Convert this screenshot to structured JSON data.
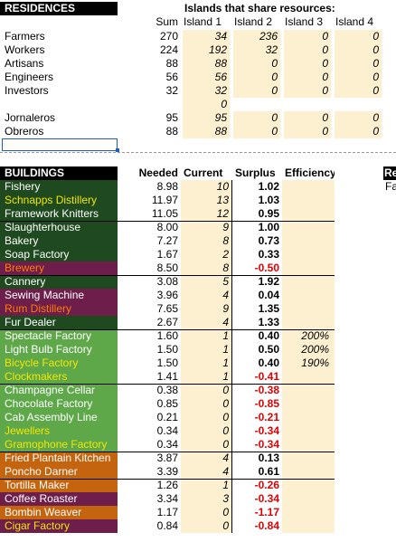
{
  "residences": {
    "title": "RESIDENCES",
    "share_title": "Islands that share resources:",
    "col_headers": [
      "Sum",
      "Island 1",
      "Island 2",
      "Island 3",
      "Island 4"
    ],
    "rows": [
      {
        "name": "Farmers",
        "sum": "270",
        "i1": "34",
        "i2": "236",
        "i3": "0",
        "i4": "0"
      },
      {
        "name": "Workers",
        "sum": "224",
        "i1": "192",
        "i2": "32",
        "i3": "0",
        "i4": "0"
      },
      {
        "name": "Artisans",
        "sum": "88",
        "i1": "88",
        "i2": "0",
        "i3": "0",
        "i4": "0"
      },
      {
        "name": "Engineers",
        "sum": "56",
        "i1": "56",
        "i2": "0",
        "i3": "0",
        "i4": "0"
      },
      {
        "name": "Investors",
        "sum": "32",
        "i1": "32",
        "i2": "0",
        "i3": "0",
        "i4": "0"
      },
      {
        "name": "",
        "sum": "",
        "i1": "0",
        "i2": "",
        "i3": "",
        "i4": ""
      },
      {
        "name": "Jornaleros",
        "sum": "95",
        "i1": "95",
        "i2": "0",
        "i3": "0",
        "i4": "0"
      },
      {
        "name": "Obreros",
        "sum": "88",
        "i1": "88",
        "i2": "0",
        "i3": "0",
        "i4": "0"
      }
    ]
  },
  "buildings": {
    "title": "BUILDINGS",
    "col_headers": [
      "Needed",
      "Current",
      "Surplus",
      "Efficiency"
    ],
    "right_header": "Re",
    "right_sub": "Fa",
    "rows": [
      {
        "name": "Fishery",
        "needed": "8.98",
        "current": "10",
        "surplus": "1.02",
        "eff": "",
        "bg": "#1f4a1f",
        "fg": "#ffffff"
      },
      {
        "name": "Schnapps Distillery",
        "needed": "11.97",
        "current": "13",
        "surplus": "1.03",
        "eff": "",
        "bg": "#1f4a1f",
        "fg": "#f2e600"
      },
      {
        "name": "Framework Knitters",
        "needed": "11.05",
        "current": "12",
        "surplus": "0.95",
        "eff": "",
        "bg": "#1f4a1f",
        "fg": "#ffffff"
      },
      {
        "name": "Slaughterhouse",
        "needed": "8.00",
        "current": "9",
        "surplus": "1.00",
        "eff": "",
        "bg": "#1f4a1f",
        "fg": "#ffffff"
      },
      {
        "name": "Bakery",
        "needed": "7.27",
        "current": "8",
        "surplus": "0.73",
        "eff": "",
        "bg": "#1f4a1f",
        "fg": "#ffffff"
      },
      {
        "name": "Soap Factory",
        "needed": "1.67",
        "current": "2",
        "surplus": "0.33",
        "eff": "",
        "bg": "#1f4a1f",
        "fg": "#ffffff"
      },
      {
        "name": "Brewery",
        "needed": "8.50",
        "current": "8",
        "surplus": "-0.50",
        "eff": "",
        "bg": "#6e1e4a",
        "fg": "#ff7a00"
      },
      {
        "name": "Cannery",
        "needed": "3.08",
        "current": "5",
        "surplus": "1.92",
        "eff": "",
        "bg": "#1f4a1f",
        "fg": "#ffffff"
      },
      {
        "name": "Sewing Machine",
        "needed": "3.96",
        "current": "4",
        "surplus": "0.04",
        "eff": "",
        "bg": "#6e1e4a",
        "fg": "#ffffff"
      },
      {
        "name": "Rum Distillery",
        "needed": "7.65",
        "current": "9",
        "surplus": "1.35",
        "eff": "",
        "bg": "#6e1e4a",
        "fg": "#ff7a00"
      },
      {
        "name": "Fur Dealer",
        "needed": "2.67",
        "current": "4",
        "surplus": "1.33",
        "eff": "",
        "bg": "#1f4a1f",
        "fg": "#ffffff"
      },
      {
        "name": "Spectacle Factory",
        "needed": "1.60",
        "current": "1",
        "surplus": "0.40",
        "eff": "200%",
        "bg": "#5fa84a",
        "fg": "#ffffff"
      },
      {
        "name": "Light Bulb Factory",
        "needed": "1.50",
        "current": "1",
        "surplus": "0.50",
        "eff": "200%",
        "bg": "#5fa84a",
        "fg": "#ffffff"
      },
      {
        "name": "Bicycle Factory",
        "needed": "1.50",
        "current": "1",
        "surplus": "0.40",
        "eff": "190%",
        "bg": "#5fa84a",
        "fg": "#f2e600"
      },
      {
        "name": "Clockmakers",
        "needed": "1.41",
        "current": "1",
        "surplus": "-0.41",
        "eff": "",
        "bg": "#5fa84a",
        "fg": "#f2e600"
      },
      {
        "name": "Champagne Cellar",
        "needed": "0.38",
        "current": "0",
        "surplus": "-0.38",
        "eff": "",
        "bg": "#5fa84a",
        "fg": "#ffffff"
      },
      {
        "name": "Chocolate Factory",
        "needed": "0.85",
        "current": "0",
        "surplus": "-0.85",
        "eff": "",
        "bg": "#5fa84a",
        "fg": "#ffffff"
      },
      {
        "name": "Cab Assembly Line",
        "needed": "0.21",
        "current": "0",
        "surplus": "-0.21",
        "eff": "",
        "bg": "#5fa84a",
        "fg": "#ffffff"
      },
      {
        "name": "Jewellers",
        "needed": "0.34",
        "current": "0",
        "surplus": "-0.34",
        "eff": "",
        "bg": "#5fa84a",
        "fg": "#f2e600"
      },
      {
        "name": "Gramophone Factory",
        "needed": "0.34",
        "current": "0",
        "surplus": "-0.34",
        "eff": "",
        "bg": "#5fa84a",
        "fg": "#f2e600"
      },
      {
        "name": "Fried Plantain Kitchen",
        "needed": "3.87",
        "current": "4",
        "surplus": "0.13",
        "eff": "",
        "bg": "#c4640e",
        "fg": "#ffffff"
      },
      {
        "name": "Poncho Darner",
        "needed": "3.39",
        "current": "4",
        "surplus": "0.61",
        "eff": "",
        "bg": "#c4640e",
        "fg": "#ffffff"
      },
      {
        "name": "Tortilla Maker",
        "needed": "1.26",
        "current": "1",
        "surplus": "-0.26",
        "eff": "",
        "bg": "#c4640e",
        "fg": "#ffffff"
      },
      {
        "name": "Coffee Roaster",
        "needed": "3.34",
        "current": "3",
        "surplus": "-0.34",
        "eff": "",
        "bg": "#6e1e4a",
        "fg": "#ffffff"
      },
      {
        "name": "Bombin Weaver",
        "needed": "1.17",
        "current": "0",
        "surplus": "-1.17",
        "eff": "",
        "bg": "#c4640e",
        "fg": "#ffffff"
      },
      {
        "name": "Cigar Factory",
        "needed": "0.84",
        "current": "0",
        "surplus": "-0.84",
        "eff": "",
        "bg": "#6e1e4a",
        "fg": "#f2e600"
      }
    ]
  }
}
